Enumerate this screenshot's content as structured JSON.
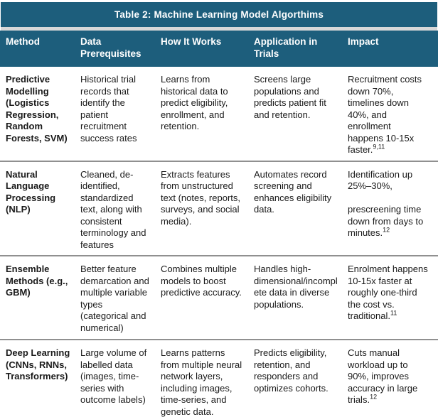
{
  "colors": {
    "header_teal": "#1d5e7c",
    "separator_gray": "#909090",
    "text_black": "#1a1a1a",
    "header_text_white": "#ffffff"
  },
  "table": {
    "title": "Table 2: Machine Learning Model Algorthims",
    "columns": [
      "Method",
      "Data Prerequisites",
      "How It Works",
      "Application in Trials",
      "Impact"
    ],
    "rows": [
      {
        "method": "Predictive Modelling (Logistics Regression, Random Forests, SVM)",
        "data_prerequisites": "Historical trial records that identify the patient recruitment success rates",
        "how_it_works": "Learns from historical data to predict eligibility, enrollment, and retention.",
        "application_in_trials": "Screens large populations and predicts patient fit and retention.",
        "impact": "Recruitment costs down 70%, timelines down 40%, and enrollment happens 10-15x faster.",
        "impact_ref": "9,11"
      },
      {
        "method": "Natural Language Processing (NLP)",
        "data_prerequisites": "Cleaned, de-identified, standardized text, along with consistent terminology and features",
        "how_it_works": "Extracts features from unstructured text (notes, reports, surveys, and social media).",
        "application_in_trials": "Automates record screening and enhances eligibility data.",
        "impact": "Identification up 25%–30%,\n\nprescreening time down from days to minutes.",
        "impact_ref": "12"
      },
      {
        "method": "Ensemble Methods (e.g., GBM)",
        "data_prerequisites": "Better feature demarcation and multiple variable types (categorical and numerical)",
        "how_it_works": "Combines multiple models to boost predictive accuracy.",
        "application_in_trials": "Handles high-dimensional/incomplete data in diverse populations.",
        "impact": "Enrolment happens 10-15x faster at roughly one-third the cost vs. traditional.",
        "impact_ref": "11"
      },
      {
        "method": "Deep Learning (CNNs, RNNs, Transformers)",
        "data_prerequisites": "Large volume of labelled data (images, time-series with outcome labels)",
        "how_it_works": "Learns patterns from multiple neural network layers, including images, time-series, and genetic data.",
        "application_in_trials": "Predicts eligibility, retention, and responders and optimizes cohorts.",
        "impact": "Cuts manual workload up to 90%, improves accuracy in large trials.",
        "impact_ref": "12"
      }
    ]
  }
}
